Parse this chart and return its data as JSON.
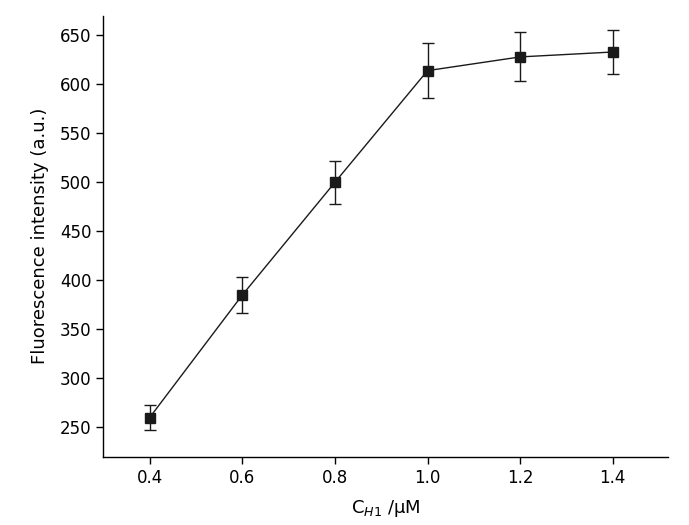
{
  "x": [
    0.4,
    0.6,
    0.8,
    1.0,
    1.2,
    1.4
  ],
  "y": [
    260,
    385,
    500,
    614,
    628,
    633
  ],
  "yerr": [
    13,
    18,
    22,
    28,
    25,
    22
  ],
  "xlabel": "C$_{H1}$ /μM",
  "ylabel": "Fluorescence intensity (a.u.)",
  "xlim": [
    0.3,
    1.52
  ],
  "ylim": [
    220,
    670
  ],
  "yticks": [
    250,
    300,
    350,
    400,
    450,
    500,
    550,
    600,
    650
  ],
  "xticks": [
    0.4,
    0.6,
    0.8,
    1.0,
    1.2,
    1.4
  ],
  "marker": "-s",
  "marker_size": 7,
  "line_color": "#1a1a1a",
  "marker_color": "#1a1a1a",
  "error_color": "#1a1a1a",
  "line_width": 1.0,
  "capsize": 4
}
